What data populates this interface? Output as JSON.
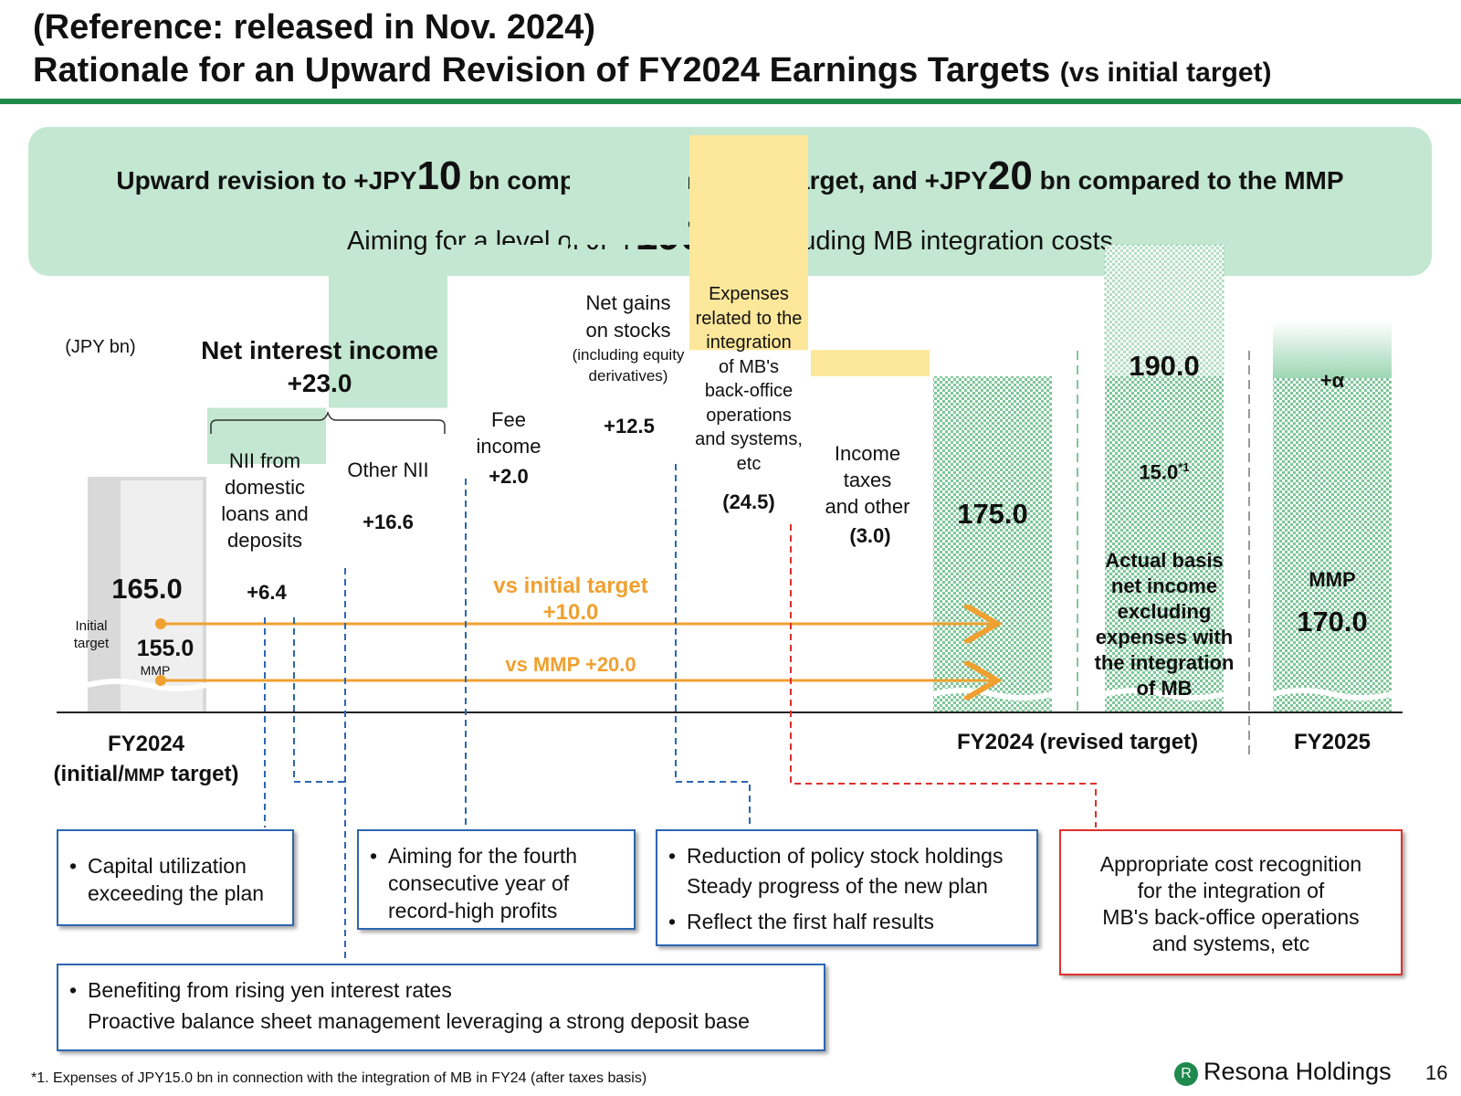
{
  "header": {
    "line1": "(Reference: released in Nov. 2024)",
    "line2_main": "Rationale for an Upward Revision of FY2024 Earnings Targets",
    "line2_sub": "(vs initial target)"
  },
  "banner": {
    "l1_a": "Upward revision to +JPY",
    "l1_n1": "10",
    "l1_b": " bn compared to the initial target, and +JPY",
    "l1_n2": "20",
    "l1_c": " bn compared to the MMP",
    "l2_a": "Aiming for a level of JPY",
    "l2_n": "190",
    "l2_b": " bn, excluding MB integration costs"
  },
  "chart_data": {
    "type": "bar",
    "unit": "(JPY bn)",
    "ylim": [
      140,
      200
    ],
    "bars": [
      {
        "key": "start",
        "from": 0,
        "to": 165.0,
        "value_label": "165.0",
        "inner_value": "155.0",
        "inner_label": "MMP",
        "side_label": [
          "Initial",
          "target"
        ]
      },
      {
        "key": "nii_loans",
        "from": 165.0,
        "to": 171.4,
        "value_label": "+6.4",
        "label": [
          "NII from",
          "domestic",
          "loans and",
          "deposits"
        ]
      },
      {
        "key": "other_nii",
        "from": 171.4,
        "to": 188.0,
        "value_label": "+16.6",
        "label": [
          "Other NII"
        ]
      },
      {
        "key": "fee",
        "from": 188.0,
        "to": 190.0,
        "value_label": "+2.0",
        "label": [
          "Fee",
          "income"
        ]
      },
      {
        "key": "stocks",
        "from": 190.0,
        "to": 202.5,
        "value_label": "+12.5",
        "label": [
          "Net gains",
          "on stocks"
        ],
        "label_small": [
          "(including equity",
          "derivatives)"
        ]
      },
      {
        "key": "mb_expenses",
        "from": 202.5,
        "to": 178.0,
        "value_label": "(24.5)",
        "label": [
          "Expenses",
          "related to the",
          "integration",
          "of MB's",
          "back-office",
          "operations",
          "and systems,",
          "etc"
        ]
      },
      {
        "key": "tax",
        "from": 178.0,
        "to": 175.0,
        "value_label": "(3.0)",
        "label": [
          "Income",
          "taxes",
          "and other"
        ]
      },
      {
        "key": "fy24_revised",
        "from": 0,
        "to": 175.0,
        "value_label": "175.0"
      },
      {
        "key": "actual_basis",
        "from": 0,
        "to": 190.0,
        "value_label": "190.0",
        "segment_value": "15.0",
        "segment_note": "*1",
        "label": [
          "Actual basis",
          "net income",
          "excluding",
          "expenses with",
          "the integration",
          "of MB"
        ]
      },
      {
        "key": "fy25",
        "from": 0,
        "to": 170.0,
        "value_label": "170.0",
        "segment_label": "MMP",
        "top_label": "+α"
      }
    ],
    "group_label": [
      "Net interest income",
      "+23.0"
    ],
    "annotations": [
      {
        "text": "vs initial target",
        "value": "+10.0"
      },
      {
        "text": "vs MMP +20.0"
      }
    ],
    "x_labels": {
      "fy24_initial": [
        "FY2024",
        "(initial/",
        "MMP",
        " target)"
      ],
      "fy24_revised": "FY2024 (revised target)",
      "fy25": "FY2025"
    }
  },
  "notes": {
    "capital": "Capital utilization exceeding the plan",
    "fee": "Aiming for the fourth consecutive year of record-high profits",
    "stocks_1a": "Reduction of policy stock holdings",
    "stocks_1b": "Steady progress of the new plan",
    "stocks_2": "Reflect the first half results",
    "cost": [
      "Appropriate cost recognition",
      "for the integration of",
      "MB's back-office operations",
      "and systems, etc"
    ],
    "rates_1": "Benefiting from rising yen interest rates",
    "rates_2": "Proactive balance sheet management leveraging a strong deposit base"
  },
  "footer": {
    "footnote": "*1. Expenses of JPY15.0 bn in connection with the integration of MB in FY24 (after taxes basis)",
    "logo_text": "Resona Holdings",
    "page": "16"
  },
  "colors": {
    "green_bar": "#c3e7d1",
    "yellow_bar": "#fde79a",
    "orange": "#f0a030",
    "blue_dash": "#2d66b0",
    "red_dash": "#e0302c",
    "brand": "#1f8a4c"
  }
}
